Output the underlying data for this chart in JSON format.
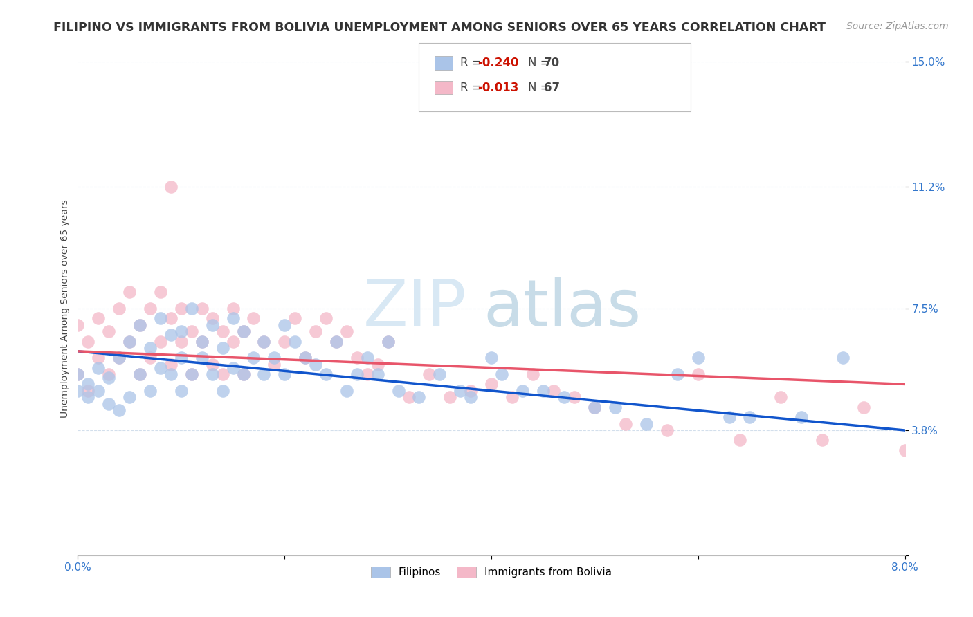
{
  "title": "FILIPINO VS IMMIGRANTS FROM BOLIVIA UNEMPLOYMENT AMONG SENIORS OVER 65 YEARS CORRELATION CHART",
  "source": "Source: ZipAtlas.com",
  "ylabel": "Unemployment Among Seniors over 65 years",
  "xlim": [
    0.0,
    0.08
  ],
  "ylim": [
    0.0,
    0.15
  ],
  "yticks": [
    0.0,
    0.038,
    0.075,
    0.112,
    0.15
  ],
  "ytick_labels": [
    "",
    "3.8%",
    "7.5%",
    "11.2%",
    "15.0%"
  ],
  "xticks": [
    0.0,
    0.02,
    0.04,
    0.06,
    0.08
  ],
  "xtick_labels": [
    "0.0%",
    "",
    "",
    "",
    "8.0%"
  ],
  "filipino_color": "#aac4e8",
  "bolivia_color": "#f4b8c8",
  "trend_filipino_color": "#1155cc",
  "trend_bolivia_color": "#e8556a",
  "watermark_zip": "ZIP",
  "watermark_atlas": "atlas",
  "title_fontsize": 12.5,
  "axis_label_fontsize": 10,
  "tick_fontsize": 11,
  "source_fontsize": 10,
  "filipino_scatter_x": [
    0.0,
    0.0,
    0.001,
    0.001,
    0.002,
    0.002,
    0.003,
    0.003,
    0.004,
    0.004,
    0.005,
    0.005,
    0.006,
    0.006,
    0.007,
    0.007,
    0.008,
    0.008,
    0.009,
    0.009,
    0.01,
    0.01,
    0.01,
    0.011,
    0.011,
    0.012,
    0.012,
    0.013,
    0.013,
    0.014,
    0.014,
    0.015,
    0.015,
    0.016,
    0.016,
    0.017,
    0.018,
    0.018,
    0.019,
    0.02,
    0.02,
    0.021,
    0.022,
    0.023,
    0.024,
    0.025,
    0.026,
    0.027,
    0.028,
    0.029,
    0.03,
    0.031,
    0.033,
    0.035,
    0.037,
    0.038,
    0.04,
    0.041,
    0.043,
    0.045,
    0.047,
    0.05,
    0.052,
    0.055,
    0.058,
    0.06,
    0.063,
    0.065,
    0.07,
    0.074
  ],
  "filipino_scatter_y": [
    0.05,
    0.055,
    0.048,
    0.052,
    0.05,
    0.057,
    0.046,
    0.054,
    0.044,
    0.06,
    0.048,
    0.065,
    0.055,
    0.07,
    0.05,
    0.063,
    0.057,
    0.072,
    0.055,
    0.067,
    0.05,
    0.06,
    0.068,
    0.055,
    0.075,
    0.06,
    0.065,
    0.055,
    0.07,
    0.05,
    0.063,
    0.057,
    0.072,
    0.055,
    0.068,
    0.06,
    0.055,
    0.065,
    0.06,
    0.055,
    0.07,
    0.065,
    0.06,
    0.058,
    0.055,
    0.065,
    0.05,
    0.055,
    0.06,
    0.055,
    0.065,
    0.05,
    0.048,
    0.055,
    0.05,
    0.048,
    0.06,
    0.055,
    0.05,
    0.05,
    0.048,
    0.045,
    0.045,
    0.04,
    0.055,
    0.06,
    0.042,
    0.042,
    0.042,
    0.06
  ],
  "bolivia_scatter_x": [
    0.0,
    0.0,
    0.001,
    0.001,
    0.002,
    0.002,
    0.003,
    0.003,
    0.004,
    0.004,
    0.005,
    0.005,
    0.006,
    0.006,
    0.007,
    0.007,
    0.008,
    0.008,
    0.009,
    0.009,
    0.01,
    0.01,
    0.011,
    0.011,
    0.012,
    0.012,
    0.013,
    0.013,
    0.014,
    0.014,
    0.015,
    0.015,
    0.016,
    0.016,
    0.017,
    0.018,
    0.019,
    0.02,
    0.021,
    0.022,
    0.023,
    0.024,
    0.025,
    0.026,
    0.027,
    0.028,
    0.029,
    0.03,
    0.032,
    0.034,
    0.036,
    0.038,
    0.04,
    0.042,
    0.044,
    0.046,
    0.048,
    0.05,
    0.053,
    0.057,
    0.06,
    0.064,
    0.068,
    0.072,
    0.076,
    0.08,
    0.009
  ],
  "bolivia_scatter_y": [
    0.055,
    0.07,
    0.05,
    0.065,
    0.06,
    0.072,
    0.055,
    0.068,
    0.06,
    0.075,
    0.065,
    0.08,
    0.055,
    0.07,
    0.06,
    0.075,
    0.065,
    0.08,
    0.058,
    0.072,
    0.065,
    0.075,
    0.055,
    0.068,
    0.065,
    0.075,
    0.058,
    0.072,
    0.055,
    0.068,
    0.065,
    0.075,
    0.055,
    0.068,
    0.072,
    0.065,
    0.058,
    0.065,
    0.072,
    0.06,
    0.068,
    0.072,
    0.065,
    0.068,
    0.06,
    0.055,
    0.058,
    0.065,
    0.048,
    0.055,
    0.048,
    0.05,
    0.052,
    0.048,
    0.055,
    0.05,
    0.048,
    0.045,
    0.04,
    0.038,
    0.055,
    0.035,
    0.048,
    0.035,
    0.045,
    0.032,
    0.112
  ],
  "filipino_trend_x": [
    0.0,
    0.08
  ],
  "filipino_trend_y": [
    0.062,
    0.038
  ],
  "bolivia_trend_x": [
    0.0,
    0.08
  ],
  "bolivia_trend_y": [
    0.062,
    0.052
  ]
}
